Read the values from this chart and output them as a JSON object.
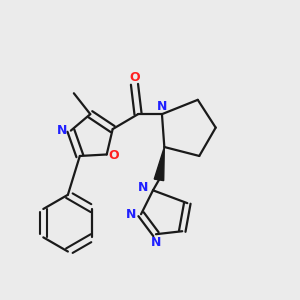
{
  "background_color": "#ebebeb",
  "bond_color": "#1a1a1a",
  "N_color": "#2020ff",
  "O_color": "#ff2020",
  "lw": 1.6,
  "figsize": [
    3.0,
    3.0
  ],
  "dpi": 100,
  "xlim": [
    0.0,
    1.0
  ],
  "ylim": [
    0.0,
    1.0
  ]
}
